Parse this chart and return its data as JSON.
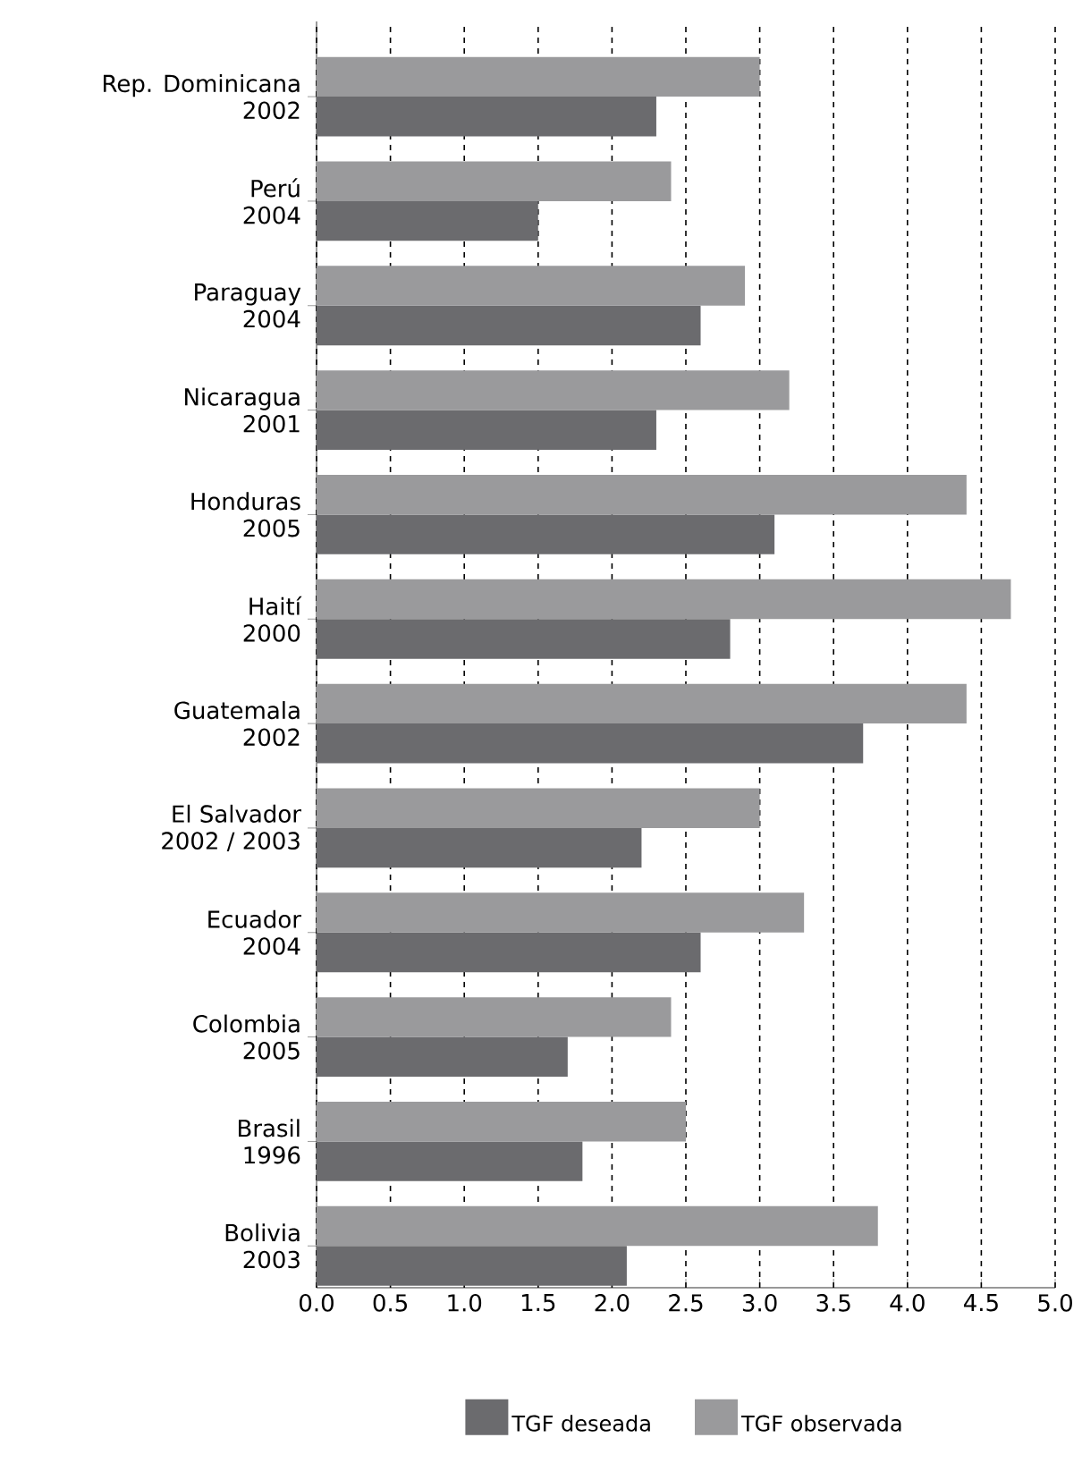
{
  "chart_data": {
    "type": "bar",
    "orientation": "horizontal",
    "categories": [
      "Rep. Dominicana\n2002",
      "Perú\n2004",
      "Paraguay\n2004",
      "Nicaragua\n2001",
      "Honduras\n2005",
      "Haití\n2000",
      "Guatemala\n2002",
      "El Salvador\n2002 / 2003",
      "Ecuador\n2004",
      "Colombia\n2005",
      "Brasil\n1996",
      "Bolivia\n2003"
    ],
    "series": [
      {
        "name": "TGF deseada",
        "color": "#6b6b6e",
        "values": [
          2.3,
          1.5,
          2.6,
          2.3,
          3.1,
          2.8,
          3.7,
          2.2,
          2.6,
          1.7,
          1.8,
          2.1
        ]
      },
      {
        "name": "TGF observada",
        "color": "#9a9a9c",
        "values": [
          3.0,
          2.4,
          2.9,
          3.2,
          4.4,
          4.7,
          4.4,
          3.0,
          3.3,
          2.4,
          2.5,
          3.8
        ]
      }
    ],
    "xlim": [
      0,
      5
    ],
    "xticks": [
      {
        "value": 0,
        "label": "0.0"
      },
      0.5,
      {
        "value": 1,
        "label": "1.0"
      },
      1.5,
      {
        "value": 2,
        "label": "2.0"
      },
      2.5,
      {
        "value": 3,
        "label": "3.0"
      },
      3.5,
      {
        "value": 4,
        "label": "4.0"
      },
      4.5,
      {
        "value": 5,
        "label": "5.0"
      }
    ],
    "grid": "x",
    "legend": "bottom"
  }
}
